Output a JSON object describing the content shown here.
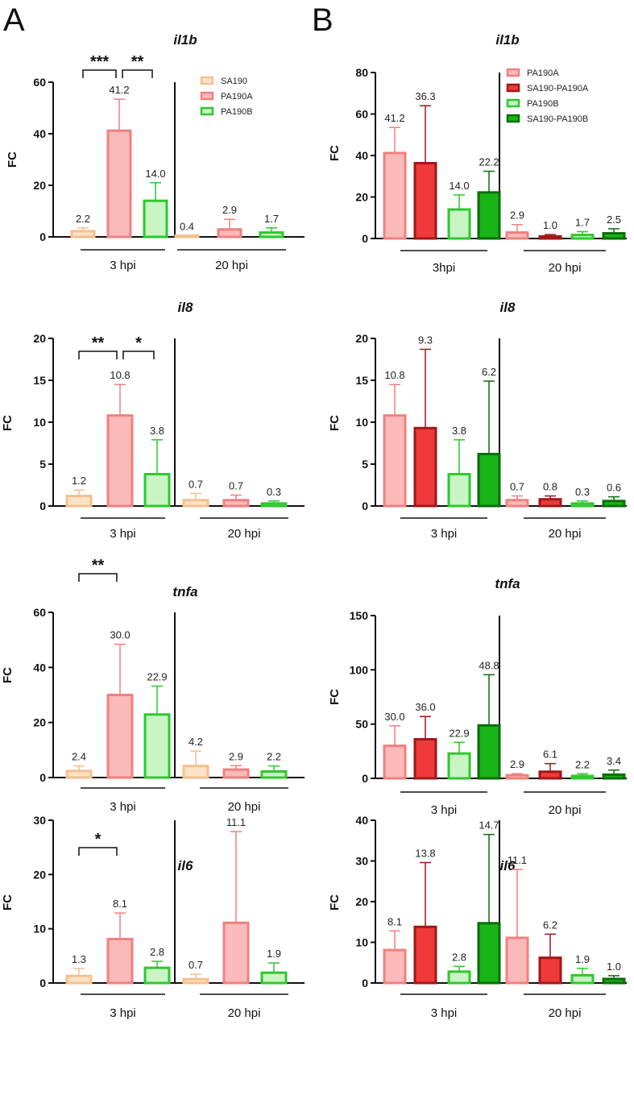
{
  "panel_labels": [
    "A",
    "B"
  ],
  "colors": {
    "SA190": {
      "stroke": "#f5c08e",
      "fill": "#fce3c8"
    },
    "PA190A": {
      "stroke": "#f08080",
      "fill": "#fbbaba"
    },
    "SA190-PA190A": {
      "stroke": "#a01818",
      "fill": "#f03a3a"
    },
    "PA190B": {
      "stroke": "#2ec82e",
      "fill": "#c9f5c4"
    },
    "SA190-PA190B": {
      "stroke": "#0a6e0a",
      "fill": "#18b418"
    }
  },
  "chart_data": [
    {
      "panel": "A",
      "type": "bar",
      "title": "il1b",
      "ylabel": "FC",
      "ylim": [
        0,
        60
      ],
      "yticks": [
        0,
        20,
        40,
        60
      ],
      "groups": [
        "3 hpi",
        "20 hpi"
      ],
      "legend": [
        "SA190",
        "PA190A",
        "PA190B"
      ],
      "series_order": [
        "SA190",
        "PA190A",
        "PA190B"
      ],
      "bars": [
        {
          "group": 0,
          "series": "SA190",
          "value": 2.2,
          "err": 1.3,
          "label": "2.2"
        },
        {
          "group": 0,
          "series": "PA190A",
          "value": 41.2,
          "err": 12.2,
          "label": "41.2"
        },
        {
          "group": 0,
          "series": "PA190B",
          "value": 14.0,
          "err": 7.0,
          "label": "14.0"
        },
        {
          "group": 1,
          "series": "SA190",
          "value": 0.4,
          "err": 0,
          "label": "0.4"
        },
        {
          "group": 1,
          "series": "PA190A",
          "value": 2.9,
          "err": 3.9,
          "label": "2.9"
        },
        {
          "group": 1,
          "series": "PA190B",
          "value": 1.7,
          "err": 1.8,
          "label": "1.7"
        }
      ],
      "significance": [
        {
          "from": 0,
          "to": 1,
          "label": "***"
        },
        {
          "from": 1,
          "to": 2,
          "label": "**"
        }
      ]
    },
    {
      "panel": "B",
      "type": "bar",
      "title": "il1b",
      "ylabel": "FC",
      "ylim": [
        0,
        80
      ],
      "yticks": [
        0,
        20,
        40,
        60,
        80
      ],
      "groups": [
        "3hpi",
        "20 hpi"
      ],
      "legend": [
        "PA190A",
        "SA190-PA190A",
        "PA190B",
        "SA190-PA190B"
      ],
      "series_order": [
        "PA190A",
        "SA190-PA190A",
        "PA190B",
        "SA190-PA190B"
      ],
      "bars": [
        {
          "group": 0,
          "series": "PA190A",
          "value": 41.2,
          "err": 12.3,
          "label": "41.2"
        },
        {
          "group": 0,
          "series": "SA190-PA190A",
          "value": 36.3,
          "err": 27.7,
          "label": "36.3"
        },
        {
          "group": 0,
          "series": "PA190B",
          "value": 14.0,
          "err": 7.0,
          "label": "14.0"
        },
        {
          "group": 0,
          "series": "SA190-PA190B",
          "value": 22.2,
          "err": 10.2,
          "label": "22.2"
        },
        {
          "group": 1,
          "series": "PA190A",
          "value": 2.9,
          "err": 3.8,
          "label": "2.9"
        },
        {
          "group": 1,
          "series": "SA190-PA190A",
          "value": 1.0,
          "err": 0.9,
          "label": "1.0"
        },
        {
          "group": 1,
          "series": "PA190B",
          "value": 1.7,
          "err": 1.6,
          "label": "1.7"
        },
        {
          "group": 1,
          "series": "SA190-PA190B",
          "value": 2.5,
          "err": 2.2,
          "label": "2.5"
        }
      ],
      "significance": []
    },
    {
      "panel": "A",
      "type": "bar",
      "title": "il8",
      "ylabel": "FC",
      "ylim": [
        0,
        20
      ],
      "yticks": [
        0,
        5,
        10,
        15,
        20
      ],
      "groups": [
        "3 hpi",
        "20 hpi"
      ],
      "legend": [],
      "series_order": [
        "SA190",
        "PA190A",
        "PA190B"
      ],
      "bars": [
        {
          "group": 0,
          "series": "SA190",
          "value": 1.2,
          "err": 0.7,
          "label": "1.2"
        },
        {
          "group": 0,
          "series": "PA190A",
          "value": 10.8,
          "err": 3.7,
          "label": "10.8"
        },
        {
          "group": 0,
          "series": "PA190B",
          "value": 3.8,
          "err": 4.1,
          "label": "3.8"
        },
        {
          "group": 1,
          "series": "SA190",
          "value": 0.7,
          "err": 0.8,
          "label": "0.7"
        },
        {
          "group": 1,
          "series": "PA190A",
          "value": 0.7,
          "err": 0.6,
          "label": "0.7"
        },
        {
          "group": 1,
          "series": "PA190B",
          "value": 0.3,
          "err": 0.3,
          "label": "0.3"
        }
      ],
      "significance": [
        {
          "from": 0,
          "to": 1,
          "label": "**"
        },
        {
          "from": 1,
          "to": 2,
          "label": "*"
        }
      ]
    },
    {
      "panel": "B",
      "type": "bar",
      "title": "il8",
      "ylabel": "FC",
      "ylim": [
        0,
        20
      ],
      "yticks": [
        0,
        5,
        10,
        15,
        20
      ],
      "groups": [
        "3 hpi",
        "20 hpi"
      ],
      "legend": [],
      "series_order": [
        "PA190A",
        "SA190-PA190A",
        "PA190B",
        "SA190-PA190B"
      ],
      "bars": [
        {
          "group": 0,
          "series": "PA190A",
          "value": 10.8,
          "err": 3.7,
          "label": "10.8"
        },
        {
          "group": 0,
          "series": "SA190-PA190A",
          "value": 9.3,
          "err": 9.4,
          "label": "9.3"
        },
        {
          "group": 0,
          "series": "PA190B",
          "value": 3.8,
          "err": 4.1,
          "label": "3.8"
        },
        {
          "group": 0,
          "series": "SA190-PA190B",
          "value": 6.2,
          "err": 8.7,
          "label": "6.2"
        },
        {
          "group": 1,
          "series": "PA190A",
          "value": 0.7,
          "err": 0.5,
          "label": "0.7"
        },
        {
          "group": 1,
          "series": "SA190-PA190A",
          "value": 0.8,
          "err": 0.4,
          "label": "0.8"
        },
        {
          "group": 1,
          "series": "PA190B",
          "value": 0.3,
          "err": 0.3,
          "label": "0.3"
        },
        {
          "group": 1,
          "series": "SA190-PA190B",
          "value": 0.6,
          "err": 0.5,
          "label": "0.6"
        }
      ],
      "significance": []
    },
    {
      "panel": "A",
      "type": "bar",
      "title": "tnfa",
      "ylabel": "FC",
      "ylim": [
        0,
        60
      ],
      "yticks": [
        0,
        20,
        40,
        60
      ],
      "groups": [
        "3 hpi",
        "20 hpi"
      ],
      "legend": [],
      "series_order": [
        "SA190",
        "PA190A",
        "PA190B"
      ],
      "bars": [
        {
          "group": 0,
          "series": "SA190",
          "value": 2.4,
          "err": 1.8,
          "label": "2.4"
        },
        {
          "group": 0,
          "series": "PA190A",
          "value": 30.0,
          "err": 18.4,
          "label": "30.0"
        },
        {
          "group": 0,
          "series": "PA190B",
          "value": 22.9,
          "err": 10.3,
          "label": "22.9"
        },
        {
          "group": 1,
          "series": "SA190",
          "value": 4.2,
          "err": 5.4,
          "label": "4.2"
        },
        {
          "group": 1,
          "series": "PA190A",
          "value": 2.9,
          "err": 1.4,
          "label": "2.9"
        },
        {
          "group": 1,
          "series": "PA190B",
          "value": 2.2,
          "err": 2.0,
          "label": "2.2"
        }
      ],
      "significance": [
        {
          "from": 0,
          "to": 1,
          "label": "**"
        }
      ]
    },
    {
      "panel": "B",
      "type": "bar",
      "title": "tnfa",
      "ylabel": "FC",
      "ylim": [
        0,
        150
      ],
      "yticks": [
        0,
        50,
        100,
        150
      ],
      "groups": [
        "3 hpi",
        "20 hpi"
      ],
      "legend": [],
      "series_order": [
        "PA190A",
        "SA190-PA190A",
        "PA190B",
        "SA190-PA190B"
      ],
      "bars": [
        {
          "group": 0,
          "series": "PA190A",
          "value": 30.0,
          "err": 18.4,
          "label": "30.0"
        },
        {
          "group": 0,
          "series": "SA190-PA190A",
          "value": 36.0,
          "err": 21.0,
          "label": "36.0"
        },
        {
          "group": 0,
          "series": "PA190B",
          "value": 22.9,
          "err": 10.3,
          "label": "22.9"
        },
        {
          "group": 0,
          "series": "SA190-PA190B",
          "value": 48.8,
          "err": 46.7,
          "label": "48.8"
        },
        {
          "group": 1,
          "series": "PA190A",
          "value": 2.9,
          "err": 1.4,
          "label": "2.9"
        },
        {
          "group": 1,
          "series": "SA190-PA190A",
          "value": 6.1,
          "err": 7.5,
          "label": "6.1"
        },
        {
          "group": 1,
          "series": "PA190B",
          "value": 2.2,
          "err": 2.0,
          "label": "2.2"
        },
        {
          "group": 1,
          "series": "SA190-PA190B",
          "value": 3.4,
          "err": 4.2,
          "label": "3.4"
        }
      ],
      "significance": []
    },
    {
      "panel": "A",
      "type": "bar",
      "title": "il6",
      "ylabel": "FC",
      "ylim": [
        0,
        30
      ],
      "yticks": [
        0,
        10,
        20,
        30
      ],
      "groups": [
        "3 hpi",
        "20 hpi"
      ],
      "legend": [],
      "series_order": [
        "SA190",
        "PA190A",
        "PA190B"
      ],
      "bars": [
        {
          "group": 0,
          "series": "SA190",
          "value": 1.3,
          "err": 1.4,
          "label": "1.3"
        },
        {
          "group": 0,
          "series": "PA190A",
          "value": 8.1,
          "err": 4.8,
          "label": "8.1"
        },
        {
          "group": 0,
          "series": "PA190B",
          "value": 2.8,
          "err": 1.2,
          "label": "2.8"
        },
        {
          "group": 1,
          "series": "SA190",
          "value": 0.7,
          "err": 0.9,
          "label": "0.7"
        },
        {
          "group": 1,
          "series": "PA190A",
          "value": 11.1,
          "err": 16.8,
          "label": "11.1"
        },
        {
          "group": 1,
          "series": "PA190B",
          "value": 1.9,
          "err": 1.8,
          "label": "1.9"
        }
      ],
      "significance": [
        {
          "from": 0,
          "to": 1,
          "label": "*"
        }
      ]
    },
    {
      "panel": "B",
      "type": "bar",
      "title": "il6",
      "ylabel": "FC",
      "ylim": [
        0,
        40
      ],
      "yticks": [
        0,
        10,
        20,
        30,
        40
      ],
      "groups": [
        "3 hpi",
        "20 hpi"
      ],
      "legend": [],
      "series_order": [
        "PA190A",
        "SA190-PA190A",
        "PA190B",
        "SA190-PA190B"
      ],
      "bars": [
        {
          "group": 0,
          "series": "PA190A",
          "value": 8.1,
          "err": 4.7,
          "label": "8.1"
        },
        {
          "group": 0,
          "series": "SA190-PA190A",
          "value": 13.8,
          "err": 15.8,
          "label": "13.8"
        },
        {
          "group": 0,
          "series": "PA190B",
          "value": 2.8,
          "err": 1.3,
          "label": "2.8"
        },
        {
          "group": 0,
          "series": "SA190-PA190B",
          "value": 14.7,
          "err": 21.8,
          "label": "14.7"
        },
        {
          "group": 1,
          "series": "PA190A",
          "value": 11.1,
          "err": 16.8,
          "label": "11.1"
        },
        {
          "group": 1,
          "series": "SA190-PA190A",
          "value": 6.2,
          "err": 5.8,
          "label": "6.2"
        },
        {
          "group": 1,
          "series": "PA190B",
          "value": 1.9,
          "err": 1.7,
          "label": "1.9"
        },
        {
          "group": 1,
          "series": "SA190-PA190B",
          "value": 1.0,
          "err": 0.8,
          "label": "1.0"
        }
      ],
      "significance": []
    }
  ]
}
